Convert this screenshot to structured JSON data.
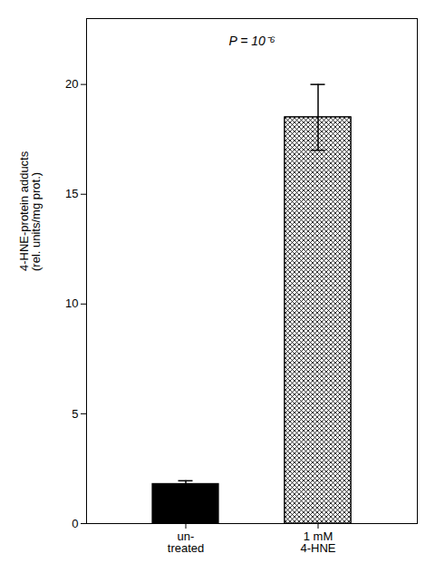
{
  "chart_data": {
    "type": "bar",
    "categories": [
      "un-\ntreated",
      "1 mM\n4-HNE"
    ],
    "values": [
      1.8,
      18.5
    ],
    "errors": [
      0.15,
      1.5
    ],
    "colors": [
      "#000000",
      "white"
    ],
    "ylabel": "4-HNE-protein adducts\n(rel. units/mg prot.)",
    "annotation": "P = 10⁻⁶",
    "ylim": [
      0,
      23
    ],
    "yticks": [
      0,
      5,
      10,
      15,
      20
    ],
    "grid": false
  }
}
